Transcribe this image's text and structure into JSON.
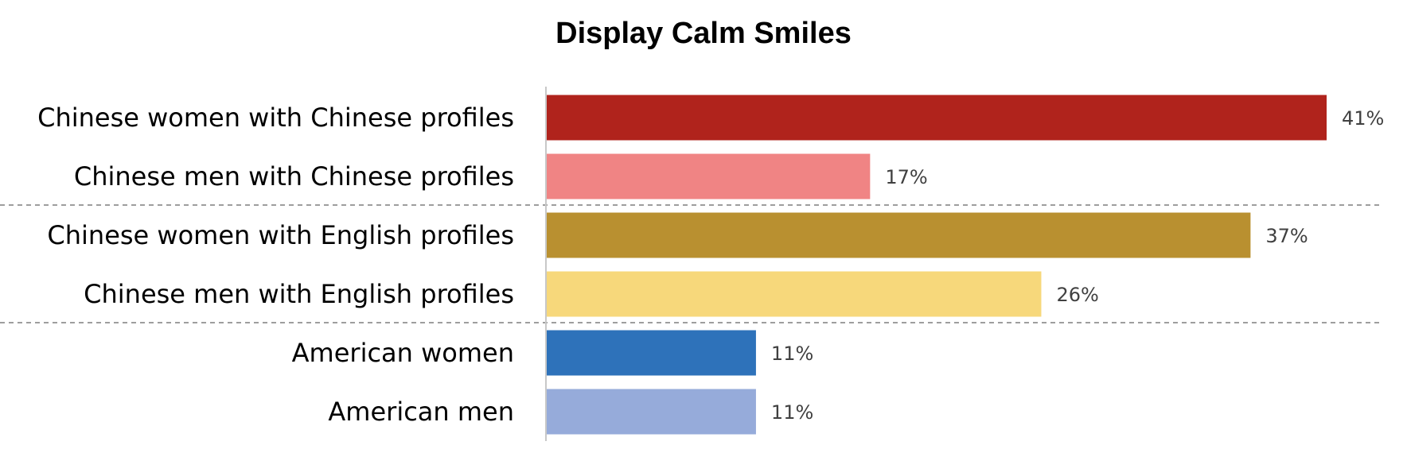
{
  "chart_data": {
    "type": "bar",
    "orientation": "horizontal",
    "title": "Display Calm Smiles",
    "xlabel": "",
    "ylabel": "",
    "xlim": [
      0,
      41
    ],
    "grid": false,
    "legend": "none",
    "categories": [
      "Chinese women with Chinese profiles",
      "Chinese men with Chinese profiles",
      "Chinese women with English profiles",
      "Chinese men with English profiles",
      "American women",
      "American men"
    ],
    "values": [
      41,
      17,
      37,
      26,
      11,
      11
    ],
    "value_labels": [
      "41%",
      "17%",
      "37%",
      "26%",
      "11%",
      "11%"
    ],
    "colors": [
      "#B0231C",
      "#F08484",
      "#B99030",
      "#F7D87B",
      "#2E72BA",
      "#96ABDA"
    ],
    "group_separators_after": [
      1,
      3
    ]
  }
}
